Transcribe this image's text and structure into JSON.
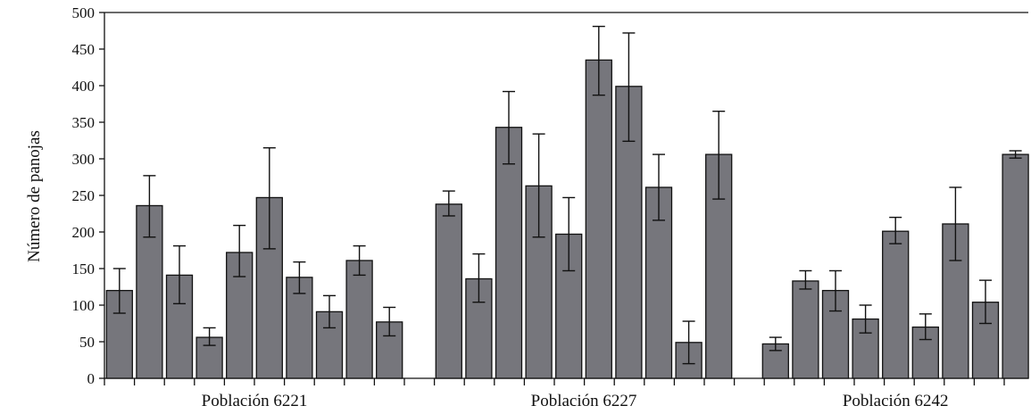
{
  "chart_data": {
    "type": "bar",
    "ylabel": "Número de panojas",
    "xlabel": "",
    "ylim": [
      0,
      500
    ],
    "yticks": [
      0,
      50,
      100,
      150,
      200,
      250,
      300,
      350,
      400,
      450,
      500
    ],
    "grid": false,
    "bar_color": "#76767c",
    "groups": [
      {
        "label": "Población 6221",
        "values": [
          120,
          236,
          141,
          56,
          172,
          247,
          138,
          91,
          161,
          77
        ],
        "error_low": [
          89,
          193,
          102,
          45,
          139,
          177,
          116,
          69,
          141,
          58
        ],
        "error_high": [
          150,
          277,
          181,
          69,
          209,
          315,
          159,
          113,
          181,
          97
        ]
      },
      {
        "label": "Población 6227",
        "values": [
          238,
          136,
          343,
          263,
          197,
          435,
          399,
          261,
          49,
          306
        ],
        "error_low": [
          222,
          104,
          293,
          193,
          147,
          387,
          324,
          216,
          20,
          245
        ],
        "error_high": [
          256,
          170,
          392,
          334,
          247,
          481,
          472,
          306,
          78,
          365
        ]
      },
      {
        "label": "Población 6242",
        "values": [
          47,
          133,
          120,
          81,
          201,
          70,
          211,
          104,
          306
        ],
        "error_low": [
          38,
          122,
          92,
          62,
          184,
          53,
          161,
          75,
          301
        ],
        "error_high": [
          56,
          147,
          147,
          100,
          220,
          88,
          261,
          134,
          311
        ]
      }
    ]
  }
}
